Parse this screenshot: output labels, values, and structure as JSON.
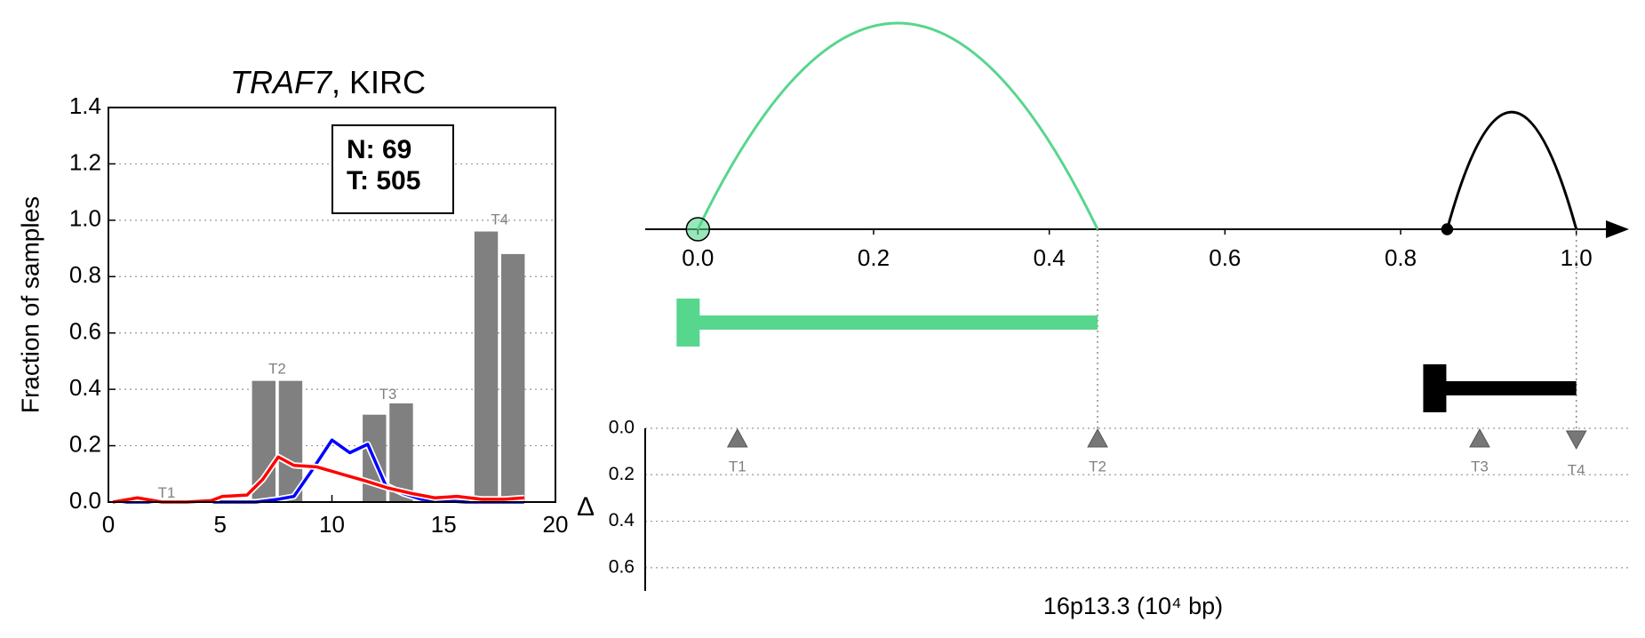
{
  "chart_data": [
    {
      "type": "combo",
      "title": [
        "TRAF7",
        ", KIRC"
      ],
      "y_label": "Fraction of samples",
      "xlim": [
        0,
        20
      ],
      "xticks": [
        0,
        5,
        10,
        15,
        20
      ],
      "ylim": [
        0,
        1.4
      ],
      "yticks": [
        {
          "value": 0,
          "label": "0.0"
        },
        {
          "value": 0.2,
          "label": "0.2"
        },
        {
          "value": 0.4,
          "label": "0.4"
        },
        {
          "value": 0.6,
          "label": "0.6"
        },
        {
          "value": 0.8,
          "label": "0.8"
        },
        {
          "value": 1,
          "label": "1.0"
        },
        {
          "value": 1.2,
          "label": "1.2"
        },
        {
          "value": 1.4,
          "label": "1.4"
        }
      ],
      "grid": true,
      "bars": {
        "color": "#808080",
        "width": 1.05,
        "x": [
          6.95,
          8.15,
          11.9,
          13.1,
          16.9,
          18.1
        ],
        "values": [
          0.43,
          0.43,
          0.31,
          0.35,
          0.96,
          0.88
        ]
      },
      "series": [
        {
          "color": "#0000ff",
          "x": [
            0.2,
            1.3,
            2.4,
            3.5,
            4.6,
            5.6,
            6.6,
            7.6,
            8.3,
            9.0,
            10.0,
            10.8,
            11.6,
            12.4,
            13.2,
            14.0,
            15.0,
            16.0,
            17.0,
            18.0,
            18.6
          ],
          "values": [
            0,
            0,
            0,
            0,
            0,
            0,
            0,
            0.01,
            0.02,
            0.1,
            0.22,
            0.175,
            0.205,
            0.06,
            0.03,
            0.01,
            0.005,
            0,
            0,
            0,
            0
          ]
        },
        {
          "color": "#ff0000",
          "x": [
            0.2,
            1.3,
            2.4,
            3.5,
            4.6,
            5.1,
            6.2,
            6.9,
            7.6,
            8.3,
            9.3,
            10.4,
            11.5,
            12.5,
            13.6,
            14.6,
            15.6,
            16.7,
            17.7,
            18.6
          ],
          "values": [
            0,
            0.015,
            0,
            0,
            0.005,
            0.02,
            0.025,
            0.08,
            0.16,
            0.13,
            0.125,
            0.1,
            0.075,
            0.05,
            0.03,
            0.015,
            0.02,
            0.01,
            0.01,
            0.015
          ]
        }
      ],
      "annotations": [
        {
          "text": "T1",
          "x": 2.6,
          "y": 0.03
        },
        {
          "text": "T2",
          "x": 7.55,
          "y": 0.47
        },
        {
          "text": "T3",
          "x": 12.5,
          "y": 0.38
        },
        {
          "text": "T4",
          "x": 17.5,
          "y": 1.0
        }
      ],
      "box": [
        "N: 69",
        "T: 505"
      ]
    },
    {
      "type": "arc",
      "x_label": "16p13.3 (10⁴ bp)",
      "y_label": "Δ",
      "xlim": [
        -0.06,
        1.06
      ],
      "xticks": [
        {
          "value": 0,
          "label": "0.0"
        },
        {
          "value": 0.2,
          "label": "0.2"
        },
        {
          "value": 0.4,
          "label": "0.4"
        },
        {
          "value": 0.6,
          "label": "0.6"
        },
        {
          "value": 0.8,
          "label": "0.8"
        },
        {
          "value": 1,
          "label": "1.0"
        }
      ],
      "ylim": [
        0,
        0.7
      ],
      "yticks": [
        {
          "value": 0,
          "label": "0.0"
        },
        {
          "value": 0.2,
          "label": "0.2"
        },
        {
          "value": 0.4,
          "label": "0.4"
        },
        {
          "value": 0.6,
          "label": "0.6"
        }
      ],
      "grid": true,
      "arcs": [
        {
          "start": 0,
          "end": 0.455,
          "color": "#57d68d"
        },
        {
          "start": 0.853,
          "end": 1.0,
          "color": "#000000"
        }
      ],
      "transcripts": [
        {
          "start": 0,
          "end": 0.455,
          "color": "#57d68d"
        },
        {
          "start": 0.85,
          "end": 1.0,
          "color": "#000000"
        }
      ],
      "markers": {
        "color": "#777777",
        "labels": [
          "T1",
          "T2",
          "T3",
          "T4"
        ],
        "x": [
          0.045,
          0.455,
          0.89,
          1.0
        ],
        "values": [
          0,
          0,
          0,
          0
        ],
        "direction": [
          "up",
          "up",
          "up",
          "down"
        ]
      }
    }
  ]
}
